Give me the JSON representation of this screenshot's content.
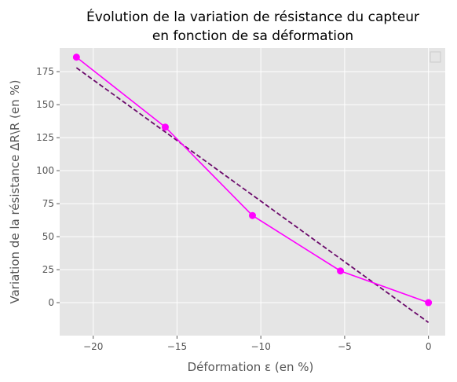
{
  "chart_data": {
    "type": "line",
    "title_lines": [
      "Évolution de la variation de résistance du capteur",
      "en fonction de sa déformation"
    ],
    "xlabel": "Déformation ε (en %)",
    "ylabel": "Variation de la résistance ΔR\\R (en %)",
    "xlim": [
      -22,
      1
    ],
    "ylim": [
      -25,
      193
    ],
    "xticks": [
      -20,
      -15,
      -10,
      -5,
      0
    ],
    "yticks": [
      0,
      25,
      50,
      75,
      100,
      125,
      150,
      175
    ],
    "grid": true,
    "legend": "top-right (empty)",
    "series": [
      {
        "style": "solid line with circle markers",
        "color": "#ff00ff",
        "x": [
          -21.0,
          -15.7,
          -10.5,
          -5.25,
          0
        ],
        "y": [
          186,
          133,
          66,
          24,
          0
        ]
      },
      {
        "style": "dashed linear fit",
        "color": "#6b0a6b",
        "x": [
          -21.0,
          0
        ],
        "y": [
          178,
          -15
        ]
      }
    ]
  },
  "colors": {
    "plot_background": "#e5e5e5",
    "grid": "#ffffff",
    "measured": "#ff00ff",
    "fit": "#6b0a6b"
  }
}
